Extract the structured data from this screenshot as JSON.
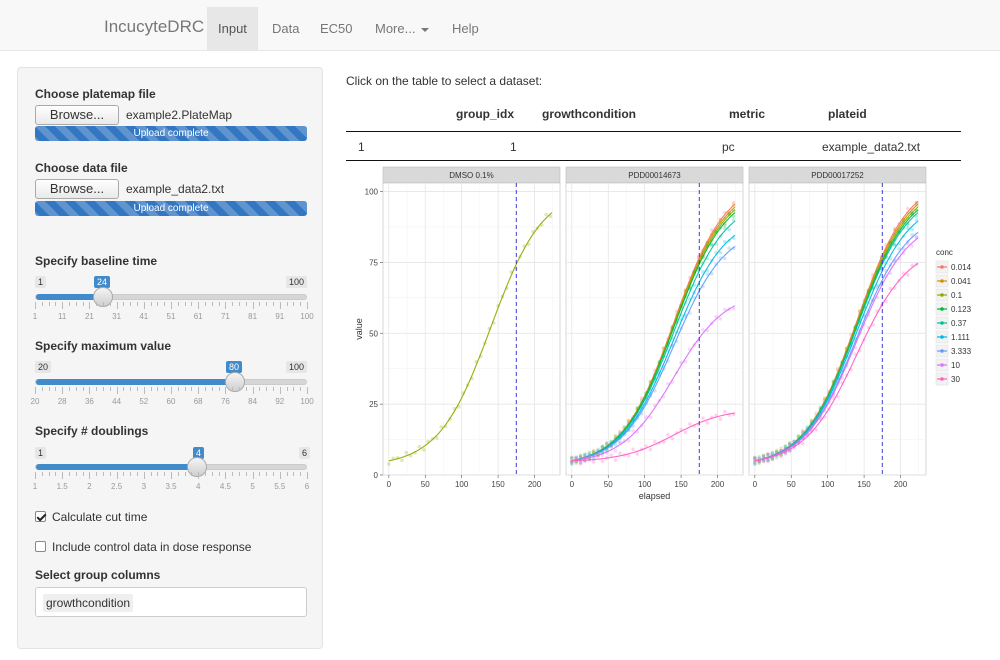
{
  "navbar": {
    "brand": "IncucyteDRC",
    "tabs": [
      {
        "label": "Input",
        "active": true
      },
      {
        "label": "Data",
        "active": false
      },
      {
        "label": "EC50",
        "active": false
      },
      {
        "label": "More...",
        "active": false
      },
      {
        "label": "Help",
        "active": false
      }
    ]
  },
  "sidebar": {
    "platemap": {
      "label": "Choose platemap file",
      "browse_label": "Browse...",
      "filename": "example2.PlateMap",
      "progress_text": "Upload complete",
      "progress_fraction": 1.0
    },
    "datafile": {
      "label": "Choose data file",
      "browse_label": "Browse...",
      "filename": "example_data2.txt",
      "progress_text": "Upload complete",
      "progress_fraction": 1.0
    },
    "baseline": {
      "label": "Specify baseline time",
      "min": "1",
      "max": "100",
      "value": "24",
      "grid": [
        "1",
        "11",
        "21",
        "31",
        "41",
        "51",
        "61",
        "71",
        "81",
        "91",
        "100"
      ]
    },
    "maxvalue": {
      "label": "Specify maximum value",
      "min": "20",
      "max": "100",
      "value": "80",
      "grid": [
        "20",
        "28",
        "36",
        "44",
        "52",
        "60",
        "68",
        "76",
        "84",
        "92",
        "100"
      ]
    },
    "doublings": {
      "label": "Specify # doublings",
      "min": "1",
      "max": "6",
      "value": "4",
      "grid": [
        "1",
        "1.5",
        "2",
        "2.5",
        "3",
        "3.5",
        "4",
        "4.5",
        "5",
        "5.5",
        "6"
      ]
    },
    "calc_cut_time": {
      "label": "Calculate cut time",
      "checked": true
    },
    "include_control": {
      "label": "Include control data in dose response",
      "checked": false
    },
    "group_columns": {
      "label": "Select group columns",
      "tags": [
        "growthcondition"
      ]
    }
  },
  "main": {
    "hint": "Click on the table to select a dataset:",
    "table": {
      "headers": [
        "group_idx",
        "growthcondition",
        "metric",
        "plateid"
      ],
      "rows": [
        {
          "rownum": "1",
          "group_idx": "1",
          "growthcondition": "",
          "metric": "pc",
          "plateid": "example_data2.txt"
        }
      ]
    }
  },
  "chart_data": {
    "type": "line",
    "facets": [
      "DMSO 0.1%",
      "PDD00014673",
      "PDD00017252"
    ],
    "xlabel": "elapsed",
    "ylabel": "value",
    "xticks": [
      0,
      50,
      100,
      150,
      200
    ],
    "yticks": [
      0,
      25,
      50,
      75,
      100
    ],
    "xlim": [
      -8,
      235
    ],
    "ylim": [
      0,
      103
    ],
    "cut_time": 175,
    "legend_title": "conc",
    "legend_position": "right",
    "grid": true,
    "series": [
      {
        "name": "0.014",
        "color": "#F8766D",
        "final": [
          null,
          96,
          97
        ]
      },
      {
        "name": "0.041",
        "color": "#D39200",
        "final": [
          null,
          95,
          96
        ]
      },
      {
        "name": "0.1",
        "color": "#93AA00",
        "final": [
          93,
          94,
          95
        ]
      },
      {
        "name": "0.123",
        "color": "#00BA38",
        "final": [
          null,
          93,
          94
        ]
      },
      {
        "name": "0.37",
        "color": "#00C19F",
        "final": [
          null,
          90,
          93
        ]
      },
      {
        "name": "1.111",
        "color": "#00B9E3",
        "final": [
          null,
          85,
          90
        ]
      },
      {
        "name": "3.333",
        "color": "#619CFF",
        "final": [
          null,
          81,
          86
        ]
      },
      {
        "name": "10",
        "color": "#DB72FB",
        "final": [
          null,
          60,
          84
        ]
      },
      {
        "name": "30",
        "color": "#FF61C3",
        "final": [
          null,
          22,
          75
        ]
      }
    ]
  }
}
